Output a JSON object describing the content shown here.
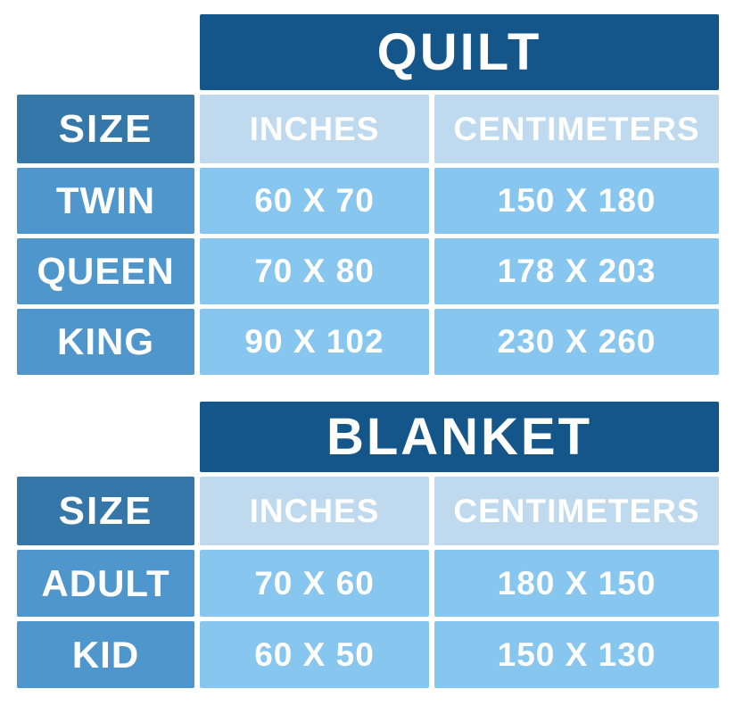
{
  "page": {
    "background": "#FFFFFF"
  },
  "colors": {
    "page_bg": "#FFFFFF",
    "title_bg": "#14568A",
    "size_header_bg": "#3577A8",
    "col_header_bg": "#BFD9EF",
    "row_label_bg": "#4F96CC",
    "value_cell_bg": "#87C6EF",
    "text": "#FFFFFF"
  },
  "chart_data": [
    {
      "type": "table",
      "title": "QUILT",
      "columns": [
        "SIZE",
        "INCHES",
        "CENTIMETERS"
      ],
      "rows": [
        [
          "TWIN",
          "60 X 70",
          "150 X 180"
        ],
        [
          "QUEEN",
          "70 X 80",
          "178 X 203"
        ],
        [
          "KING",
          "90 X 102",
          "230 X 260"
        ]
      ]
    },
    {
      "type": "table",
      "title": "BLANKET",
      "columns": [
        "SIZE",
        "INCHES",
        "CENTIMETERS"
      ],
      "rows": [
        [
          "ADULT",
          "70 X 60",
          "180 X 150"
        ],
        [
          "KID",
          "60 X 50",
          "150 X 130"
        ]
      ]
    }
  ]
}
